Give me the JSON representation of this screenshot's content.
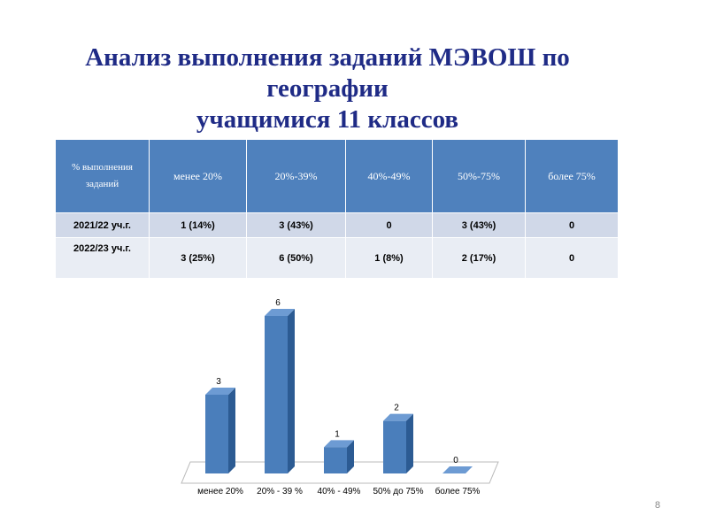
{
  "title": [
    "Анализ выполнения заданий МЭВОШ по",
    "географии",
    "учащимися 11 классов"
  ],
  "table": {
    "header": [
      "% выполнения заданий",
      "менее 20%",
      "20%-39%",
      "40%-49%",
      "50%-75%",
      "более 75%"
    ],
    "rows": [
      [
        "2021/22 уч.г.",
        "1 (14%)",
        "3 (43%)",
        "0",
        "3 (43%)",
        "0"
      ],
      [
        "2022/23 уч.г.",
        "3 (25%)",
        "6 (50%)",
        "1 (8%)",
        "2 (17%)",
        "0"
      ]
    ]
  },
  "chart_data": {
    "type": "bar",
    "categories": [
      "менее 20%",
      "20% - 39 %",
      "40% - 49%",
      "50% до 75%",
      "более 75%"
    ],
    "values": [
      3,
      6,
      1,
      2,
      0
    ],
    "color": "#4a7ebb"
  },
  "page_number": "8"
}
